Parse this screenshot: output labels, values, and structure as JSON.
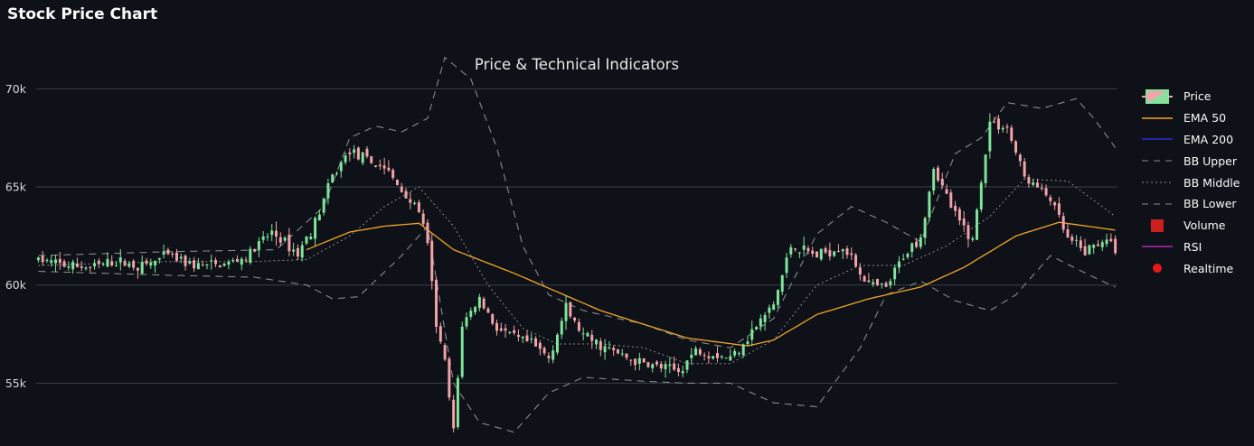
{
  "app": {
    "title": "Stock Price Chart"
  },
  "colors": {
    "background": "#0e1117",
    "grid": "#3a3f4a",
    "up": "#7fe59b",
    "down": "#f3a3a9",
    "ema50": "#f5a623",
    "ema200": "#2b2bd9",
    "bb": "#8a8a8a",
    "volume": "#cc1f1f",
    "rsi": "#b026b0",
    "realtime": "#e61919",
    "text": "#fafafa"
  },
  "chart_data": {
    "type": "candlestick",
    "title": "Price & Technical Indicators",
    "xlabel": "",
    "ylabel": "",
    "ylim": [
      51800,
      72500
    ],
    "y_ticks": [
      55000,
      60000,
      65000,
      70000
    ],
    "y_tick_labels": [
      "55k",
      "60k",
      "65k",
      "70k"
    ],
    "grid": true,
    "legend_position": "right",
    "legend": [
      "Price",
      "EMA 50",
      "EMA 200",
      "BB Upper",
      "BB Middle",
      "BB Lower",
      "Volume",
      "RSI",
      "Realtime"
    ],
    "candle_count": 250,
    "close_anchors": [
      [
        0,
        61300
      ],
      [
        6,
        61000
      ],
      [
        12,
        60900
      ],
      [
        18,
        61200
      ],
      [
        24,
        60950
      ],
      [
        30,
        61500
      ],
      [
        36,
        61000
      ],
      [
        42,
        61000
      ],
      [
        48,
        61400
      ],
      [
        54,
        62700
      ],
      [
        60,
        61600
      ],
      [
        64,
        63200
      ],
      [
        68,
        65500
      ],
      [
        72,
        66900
      ],
      [
        76,
        66300
      ],
      [
        80,
        66000
      ],
      [
        84,
        64800
      ],
      [
        88,
        63800
      ],
      [
        90,
        62000
      ],
      [
        92,
        58000
      ],
      [
        94,
        56000
      ],
      [
        96,
        52500
      ],
      [
        98,
        58000
      ],
      [
        102,
        59300
      ],
      [
        106,
        57800
      ],
      [
        110,
        57300
      ],
      [
        114,
        57000
      ],
      [
        118,
        56300
      ],
      [
        122,
        58800
      ],
      [
        126,
        57400
      ],
      [
        132,
        56700
      ],
      [
        138,
        56100
      ],
      [
        144,
        55800
      ],
      [
        148,
        55600
      ],
      [
        152,
        56700
      ],
      [
        160,
        56300
      ],
      [
        166,
        57900
      ],
      [
        170,
        59000
      ],
      [
        174,
        62000
      ],
      [
        180,
        61500
      ],
      [
        186,
        62000
      ],
      [
        192,
        60000
      ],
      [
        196,
        59800
      ],
      [
        200,
        61500
      ],
      [
        204,
        62500
      ],
      [
        207,
        66000
      ],
      [
        212,
        63500
      ],
      [
        216,
        62300
      ],
      [
        220,
        68300
      ],
      [
        224,
        68000
      ],
      [
        228,
        65500
      ],
      [
        234,
        64400
      ],
      [
        238,
        62300
      ],
      [
        242,
        61700
      ],
      [
        246,
        62300
      ],
      [
        249,
        61900
      ]
    ],
    "ema50_anchors": [
      [
        62,
        61800
      ],
      [
        72,
        62700
      ],
      [
        80,
        63000
      ],
      [
        88,
        63150
      ],
      [
        96,
        61800
      ],
      [
        110,
        60600
      ],
      [
        130,
        58700
      ],
      [
        150,
        57300
      ],
      [
        164,
        56900
      ],
      [
        170,
        57200
      ],
      [
        180,
        58500
      ],
      [
        192,
        59300
      ],
      [
        204,
        59900
      ],
      [
        214,
        60900
      ],
      [
        226,
        62500
      ],
      [
        236,
        63200
      ],
      [
        249,
        62800
      ]
    ],
    "bb_middle_anchors": [
      [
        0,
        61000
      ],
      [
        30,
        61200
      ],
      [
        50,
        61200
      ],
      [
        62,
        61300
      ],
      [
        72,
        62500
      ],
      [
        80,
        64000
      ],
      [
        88,
        65000
      ],
      [
        96,
        63000
      ],
      [
        104,
        60000
      ],
      [
        112,
        57800
      ],
      [
        120,
        57000
      ],
      [
        130,
        57000
      ],
      [
        140,
        56800
      ],
      [
        150,
        56000
      ],
      [
        160,
        56000
      ],
      [
        170,
        57200
      ],
      [
        180,
        60000
      ],
      [
        190,
        61000
      ],
      [
        200,
        61000
      ],
      [
        210,
        62000
      ],
      [
        220,
        63500
      ],
      [
        228,
        65400
      ],
      [
        238,
        65300
      ],
      [
        249,
        63500
      ]
    ],
    "bb_upper_anchors": [
      [
        0,
        61500
      ],
      [
        30,
        61700
      ],
      [
        55,
        61800
      ],
      [
        66,
        64000
      ],
      [
        72,
        67500
      ],
      [
        78,
        68100
      ],
      [
        84,
        67800
      ],
      [
        90,
        68500
      ],
      [
        94,
        71600
      ],
      [
        100,
        70500
      ],
      [
        106,
        67000
      ],
      [
        112,
        62000
      ],
      [
        118,
        59500
      ],
      [
        126,
        58700
      ],
      [
        140,
        58000
      ],
      [
        150,
        57200
      ],
      [
        160,
        56800
      ],
      [
        170,
        58300
      ],
      [
        180,
        62600
      ],
      [
        188,
        64000
      ],
      [
        196,
        63200
      ],
      [
        204,
        62200
      ],
      [
        212,
        66700
      ],
      [
        218,
        67500
      ],
      [
        224,
        69300
      ],
      [
        232,
        69000
      ],
      [
        240,
        69500
      ],
      [
        244,
        68500
      ],
      [
        249,
        67000
      ]
    ],
    "bb_lower_anchors": [
      [
        0,
        60700
      ],
      [
        30,
        60500
      ],
      [
        50,
        60400
      ],
      [
        62,
        60000
      ],
      [
        68,
        59300
      ],
      [
        74,
        59400
      ],
      [
        84,
        61500
      ],
      [
        90,
        63000
      ],
      [
        96,
        55000
      ],
      [
        102,
        53000
      ],
      [
        110,
        52500
      ],
      [
        118,
        54500
      ],
      [
        126,
        55300
      ],
      [
        140,
        55100
      ],
      [
        150,
        55000
      ],
      [
        160,
        55000
      ],
      [
        170,
        54000
      ],
      [
        180,
        53800
      ],
      [
        190,
        56800
      ],
      [
        196,
        59500
      ],
      [
        204,
        60200
      ],
      [
        212,
        59200
      ],
      [
        220,
        58700
      ],
      [
        226,
        59500
      ],
      [
        234,
        61500
      ],
      [
        244,
        60400
      ],
      [
        249,
        59900
      ]
    ]
  }
}
